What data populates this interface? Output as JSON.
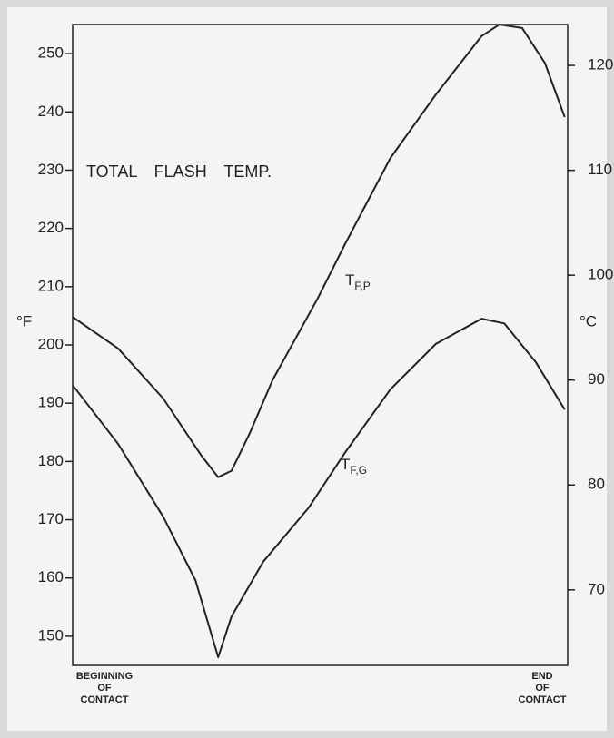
{
  "chart_data": {
    "type": "line",
    "annotation": "TOTAL FLASH TEMP.",
    "ylabel": "°F",
    "y2label": "°C",
    "x_start_label": [
      "BEGINNING",
      "OF",
      "CONTACT"
    ],
    "x_end_label": [
      "END",
      "OF",
      "CONTACT"
    ],
    "xlim": [
      0,
      100
    ],
    "ylim": [
      145,
      255
    ],
    "yticks": [
      150,
      160,
      170,
      180,
      190,
      200,
      210,
      220,
      230,
      240,
      250
    ],
    "y2lim": [
      62.8,
      123.9
    ],
    "y2ticks": [
      70,
      80,
      90,
      100,
      110,
      120
    ],
    "color": "#222222",
    "series": [
      {
        "name": "T",
        "subscript": "F,P",
        "x": [
          0,
          9.2,
          18.3,
          26,
          29.4,
          32.1,
          35.8,
          40.4,
          49.5,
          55,
          64.2,
          73.4,
          82.6,
          86.2,
          90.8,
          95.4,
          99.4
        ],
        "values": [
          204.8,
          199.4,
          190.8,
          181,
          177.3,
          178.4,
          184.9,
          194,
          208,
          217.3,
          232.1,
          243,
          253,
          255,
          254.4,
          248.4,
          239.1
        ]
      },
      {
        "name": "T",
        "subscript": "F,G",
        "x": [
          0,
          9.2,
          18.3,
          24.8,
          29.4,
          32.1,
          38.5,
          47.7,
          55,
          64.2,
          73.4,
          82.6,
          87.2,
          93.6,
          99.4
        ],
        "values": [
          193.1,
          183,
          170.5,
          159.6,
          146.4,
          153.4,
          162.8,
          172.1,
          181.5,
          192.4,
          200.2,
          204.5,
          203.7,
          197,
          188.9
        ]
      }
    ]
  }
}
